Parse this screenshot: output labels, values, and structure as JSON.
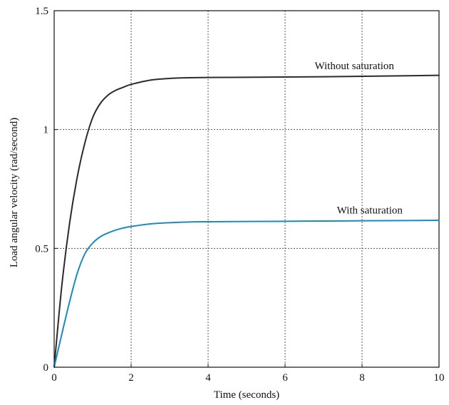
{
  "chart_data": {
    "type": "line",
    "title": "",
    "xlabel": "Time (seconds)",
    "ylabel": "Load angular velocity (rad/second)",
    "xlim": [
      0,
      10
    ],
    "ylim": [
      0,
      1.5
    ],
    "grid": true,
    "x_ticks": [
      {
        "value": 0,
        "label": "0"
      },
      {
        "value": 2,
        "label": "2"
      },
      {
        "value": 4,
        "label": "4"
      },
      {
        "value": 6,
        "label": "6"
      },
      {
        "value": 8,
        "label": "8"
      },
      {
        "value": 10,
        "label": "10"
      }
    ],
    "y_ticks": [
      {
        "value": 0,
        "label": "0"
      },
      {
        "value": 0.5,
        "label": "0.5"
      },
      {
        "value": 1,
        "label": "1"
      },
      {
        "value": 1.5,
        "label": "1.5"
      }
    ],
    "series": [
      {
        "name": "Without saturation",
        "color": "#2b2b2b",
        "x": [
          0,
          0.2,
          0.4,
          0.6,
          0.8,
          1.0,
          1.2,
          1.4,
          1.6,
          1.8,
          2.0,
          2.5,
          3.0,
          3.5,
          4.0,
          5.0,
          6.0,
          7.0,
          8.0,
          9.0,
          10.0
        ],
        "y": [
          0,
          0.345,
          0.605,
          0.8,
          0.945,
          1.05,
          1.11,
          1.145,
          1.165,
          1.178,
          1.19,
          1.208,
          1.215,
          1.218,
          1.219,
          1.22,
          1.221,
          1.222,
          1.224,
          1.226,
          1.228
        ]
      },
      {
        "name": "With saturation",
        "color": "#1a8ac4",
        "x": [
          0,
          0.2,
          0.4,
          0.6,
          0.8,
          1.0,
          1.2,
          1.4,
          1.6,
          1.8,
          2.0,
          2.5,
          3.0,
          3.5,
          4.0,
          5.0,
          6.0,
          7.0,
          8.0,
          9.0,
          10.0
        ],
        "y": [
          0,
          0.14,
          0.275,
          0.395,
          0.478,
          0.522,
          0.549,
          0.565,
          0.577,
          0.586,
          0.592,
          0.603,
          0.608,
          0.611,
          0.612,
          0.613,
          0.614,
          0.615,
          0.616,
          0.617,
          0.618
        ]
      }
    ],
    "annotations": [
      {
        "text": "Without saturation",
        "series": 0,
        "x": 7.8
      },
      {
        "text": "With saturation",
        "series": 1,
        "x": 8.2
      }
    ]
  }
}
